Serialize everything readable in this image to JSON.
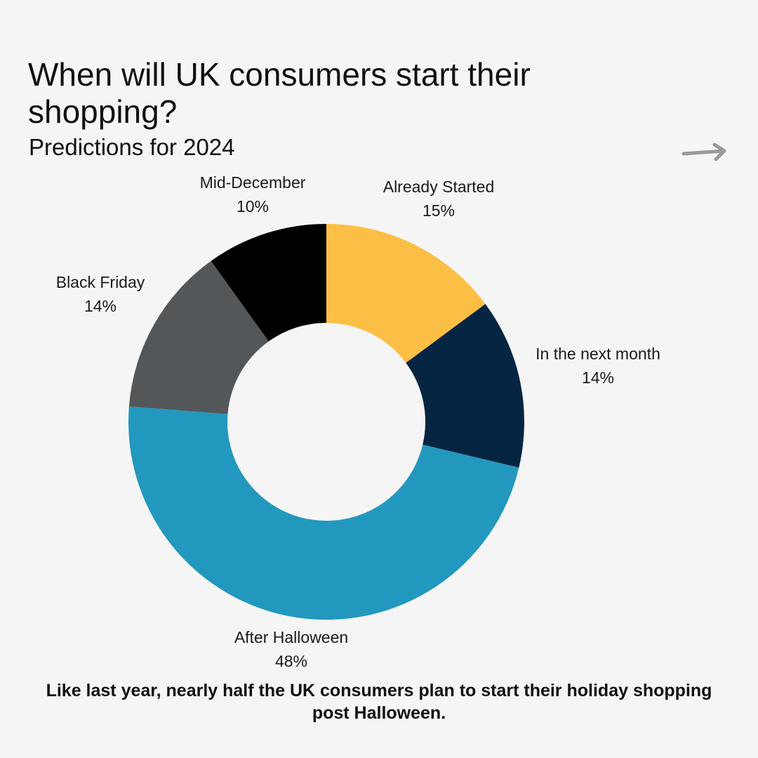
{
  "chart_data": {
    "type": "pie",
    "title": "When will UK consumers start their shopping?",
    "subtitle": "Predictions for 2024",
    "categories": [
      "Already Started",
      "In the next month",
      "After Halloween",
      "Black Friday",
      "Mid-December"
    ],
    "values": [
      15,
      14,
      48,
      14,
      10
    ],
    "value_labels": [
      "15%",
      "14%",
      "48%",
      "14%",
      "10%"
    ],
    "colors": [
      "#fcbf45",
      "#052542",
      "#2398be",
      "#53575a",
      "#000000"
    ],
    "donut": true,
    "legend": "none",
    "caption": "Like last year, nearly half the UK consumers plan to start their holiday shopping post Halloween."
  },
  "nav": {
    "icon": "arrow-right-icon"
  }
}
